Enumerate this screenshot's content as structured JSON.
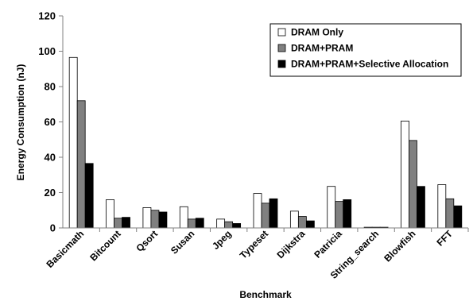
{
  "chart_data": {
    "type": "bar",
    "title": "",
    "xlabel": "Benchmark",
    "ylabel": "Energy Consumption (nJ)",
    "ylim": [
      0,
      120
    ],
    "yticks": [
      0,
      20,
      40,
      60,
      80,
      100,
      120
    ],
    "grid": false,
    "legend_position": "top-right",
    "categories": [
      "Basicmath",
      "Bitcount",
      "Qsort",
      "Susan",
      "Jpeg",
      "Typeset",
      "Dijkstra",
      "Patricia",
      "String_search",
      "Blowfish",
      "FFT"
    ],
    "series": [
      {
        "name": "DRAM Only",
        "color": "#ffffff",
        "values": [
          96.5,
          16.0,
          11.5,
          12.0,
          5.0,
          19.5,
          9.5,
          23.5,
          0.4,
          60.5,
          24.5
        ]
      },
      {
        "name": "DRAM+PRAM",
        "color": "#808080",
        "values": [
          72.0,
          5.5,
          10.0,
          5.0,
          3.5,
          14.0,
          6.5,
          15.0,
          0.4,
          49.5,
          16.5
        ]
      },
      {
        "name": "DRAM+PRAM+Selective Allocation",
        "color": "#000000",
        "values": [
          36.5,
          6.0,
          9.0,
          5.5,
          2.5,
          16.5,
          4.0,
          16.0,
          0.4,
          23.5,
          12.5
        ]
      }
    ]
  }
}
